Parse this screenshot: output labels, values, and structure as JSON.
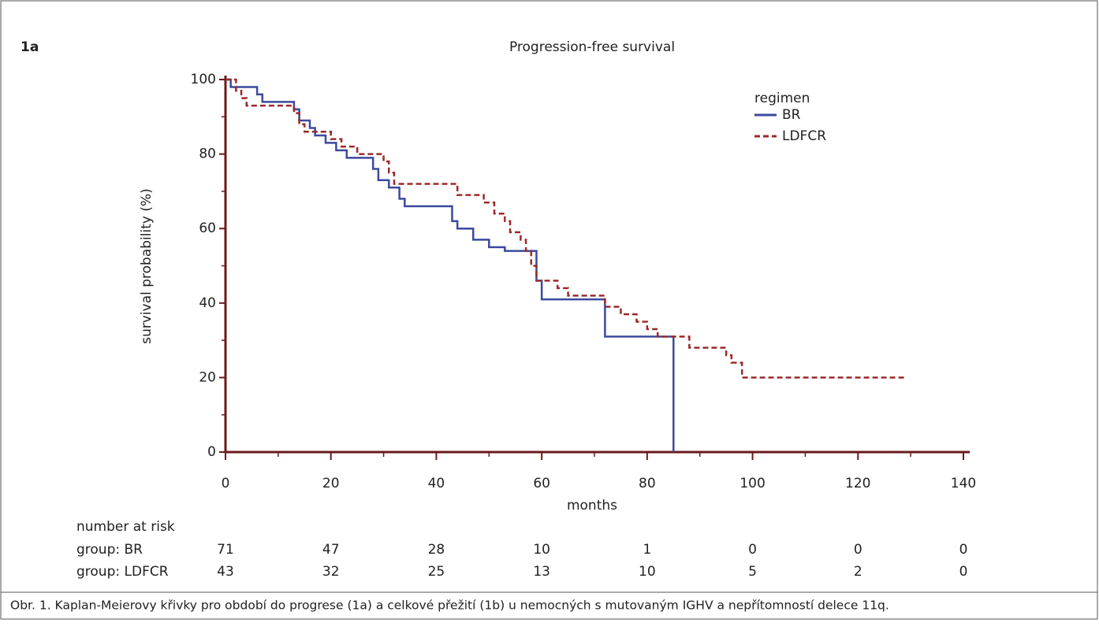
{
  "chart_data": {
    "type": "step",
    "panel_label": "1a",
    "title": "Progression-free survival",
    "x_label": "months",
    "y_label": "survival probability (%)",
    "xlim": [
      0,
      140
    ],
    "ylim": [
      0,
      100
    ],
    "xticks": [
      0,
      20,
      40,
      60,
      80,
      100,
      120,
      140
    ],
    "yticks": [
      0,
      20,
      40,
      60,
      80,
      100
    ],
    "legend_title": "regimen",
    "series": [
      {
        "name": "BR",
        "color": "#3b4a9e",
        "dash": false,
        "x": [
          0,
          1,
          6,
          7,
          13,
          14,
          16,
          17,
          19,
          21,
          23,
          28,
          29,
          31,
          33,
          34,
          43,
          44,
          47,
          50,
          53,
          59,
          60,
          72,
          85
        ],
        "values": [
          100,
          98,
          96,
          94,
          92,
          89,
          87,
          85,
          83,
          81,
          79,
          76,
          73,
          71,
          68,
          66,
          62,
          60,
          57,
          55,
          54,
          46,
          41,
          31,
          0
        ]
      },
      {
        "name": "LDFCR",
        "color": "#9b2a2a",
        "dash": true,
        "x": [
          0,
          2,
          3,
          4,
          13,
          14,
          15,
          20,
          22,
          25,
          30,
          31,
          32,
          44,
          49,
          51,
          53,
          54,
          56,
          57,
          58,
          59,
          63,
          65,
          72,
          75,
          78,
          80,
          82,
          88,
          95,
          96,
          98,
          129
        ],
        "values": [
          100,
          97,
          95,
          93,
          91,
          88,
          86,
          84,
          82,
          80,
          78,
          75,
          72,
          69,
          67,
          64,
          62,
          59,
          57,
          54,
          50,
          46,
          44,
          42,
          39,
          37,
          35,
          33,
          31,
          28,
          26,
          24,
          20,
          20
        ]
      }
    ],
    "risk_table": {
      "title": "number at risk",
      "rows": [
        {
          "label": "group: BR",
          "values": [
            71,
            47,
            28,
            10,
            1,
            0,
            0,
            0
          ]
        },
        {
          "label": "group: LDFCR",
          "values": [
            43,
            32,
            25,
            13,
            10,
            5,
            2,
            0
          ]
        }
      ]
    },
    "caption": "Obr. 1. Kaplan-Meierovy křivky pro období do progrese (1a) a celkové přežití (1b) u nemocných s mutovaným IGHV a nepřítomností delece 11q."
  }
}
